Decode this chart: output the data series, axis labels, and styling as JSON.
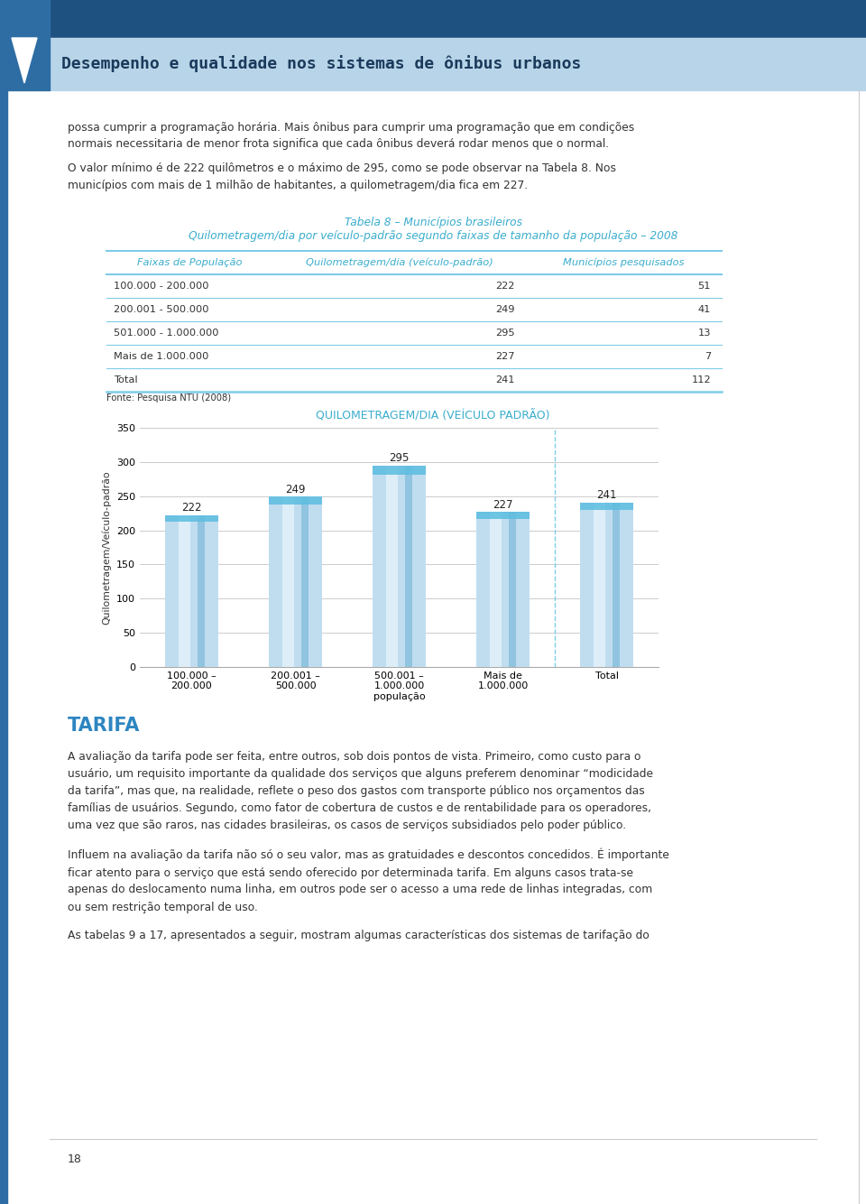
{
  "page_bg": "#ffffff",
  "header_dark_bg": "#1e5080",
  "header_light_bg": "#b8d4e8",
  "header_text": "Desempenho e qualidade nos sistemas de ônibus urbanos",
  "header_text_color": "#1a3a5c",
  "body_text_color": "#333333",
  "paragraph1": "possa cumprir a programação horária. Mais ônibus para cumprir uma programação que em condições\nnormais necessitaria de menor frota significa que cada ônibus deverá rodar menos que o normal.",
  "paragraph2": "O valor mínimo é de 222 quilômetros e o máximo de 295, como se pode observar na Tabela 8. Nos\nmunicípios com mais de 1 milhão de habitantes, a quilometragem/dia fica em 227.",
  "table_title1": "Tabela 8 – Municípios brasileiros",
  "table_title2": "Quilometragem/dia por veículo-padrão segundo faixas de tamanho da população – 2008",
  "table_title_color": "#3aadcc",
  "table_header_color": "#3aadcc",
  "table_line_color": "#7ecde8",
  "table_headers": [
    "Faixas de População",
    "Quilometragem/dia (veículo-padrão)",
    "Municípios pesquisados"
  ],
  "table_rows": [
    [
      "100.000 - 200.000",
      "222",
      "51"
    ],
    [
      "200.001 - 500.000",
      "249",
      "41"
    ],
    [
      "501.000 - 1.000.000",
      "295",
      "13"
    ],
    [
      "Mais de 1.000.000",
      "227",
      "7"
    ],
    [
      "Total",
      "241",
      "112"
    ]
  ],
  "fonte_text": "Fonte: Pesquisa NTU (2008)",
  "chart_title": "QUILOMETRAGEM/DIA (VEÍCULO PADRÃO)",
  "chart_title_color": "#3aadcc",
  "bar_categories": [
    "100.000 –\n200.000",
    "200.001 –\n500.000",
    "500.001 –\n1.000.000\npopulação",
    "Mais de\n1.000.000",
    "Total"
  ],
  "bar_values": [
    222,
    249,
    295,
    227,
    241
  ],
  "chart_ylabel": "Quilometragem/Veículo-padrão",
  "chart_ylim": [
    0,
    350
  ],
  "chart_yticks": [
    0,
    50,
    100,
    150,
    200,
    250,
    300,
    350
  ],
  "dashed_line_color": "#7ecde8",
  "tarifa_title": "TARIFA",
  "tarifa_color": "#2e86c1",
  "tarifa_para1": "A avaliação da tarifa pode ser feita, entre outros, sob dois pontos de vista. Primeiro, como custo para o\nusuário, um requisito importante da qualidade dos serviços que alguns preferem denominar “modicidade\nda tarifa”, mas que, na realidade, reflete o peso dos gastos com transporte público nos orçamentos das\nfamílias de usuários. Segundo, como fator de cobertura de custos e de rentabilidade para os operadores,\numa vez que são raros, nas cidades brasileiras, os casos de serviços subsidiados pelo poder público.",
  "tarifa_para2": "Influem na avaliação da tarifa não só o seu valor, mas as gratuidades e descontos concedidos. É importante\nficar atento para o serviço que está sendo oferecido por determinada tarifa. Em alguns casos trata-se\napenas do deslocamento numa linha, em outros pode ser o acesso a uma rede de linhas integradas, com\nou sem restrição temporal de uso.",
  "tarifa_para3": "As tabelas 9 a 17, apresentados a seguir, mostram algumas características dos sistemas de tarifação do",
  "page_number": "18",
  "border_color": "#cccccc",
  "left_stripe_color": "#2e6da4"
}
